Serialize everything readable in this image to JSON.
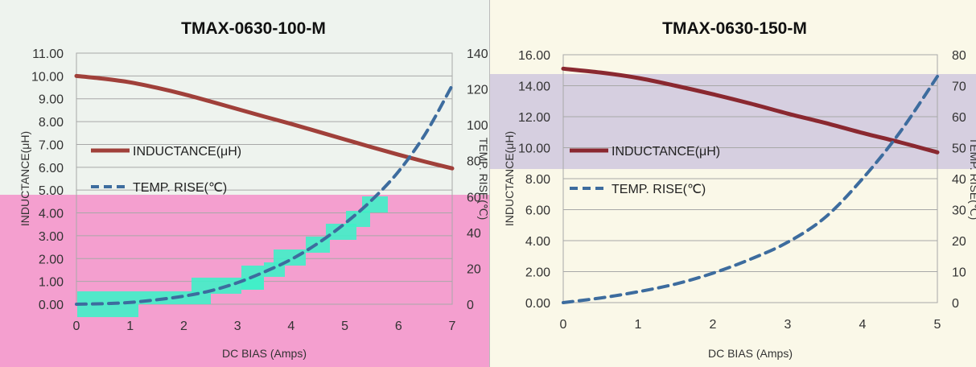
{
  "chart_data": [
    {
      "type": "line",
      "title": "TMAX-0630-100-M",
      "xlabel": "DC BIAS  (Amps)",
      "ylabel": "INDUCTANCE(μH)",
      "y2label": "TEMP. RISE(℃)",
      "xlim": [
        0,
        7
      ],
      "ylim": [
        0,
        11
      ],
      "y2lim": [
        0,
        140
      ],
      "x_ticks": [
        "0",
        "1",
        "2",
        "3",
        "4",
        "5",
        "6",
        "7"
      ],
      "y_ticks": [
        "0.00",
        "1.00",
        "2.00",
        "3.00",
        "4.00",
        "5.00",
        "6.00",
        "7.00",
        "8.00",
        "9.00",
        "10.00",
        "11.00"
      ],
      "y2_ticks": [
        "0",
        "20",
        "40",
        "60",
        "80",
        "100",
        "120",
        "140"
      ],
      "grid": "horizontal",
      "legend_position": "center-left",
      "series": [
        {
          "name": "INDUCTANCE(μH)",
          "axis": "left",
          "style": "solid",
          "color": "#a0403a",
          "x": [
            0,
            0.5,
            1,
            1.5,
            2,
            2.5,
            3,
            3.5,
            4,
            4.5,
            5,
            5.5,
            6,
            6.5,
            7
          ],
          "y": [
            10.0,
            9.88,
            9.72,
            9.48,
            9.2,
            8.88,
            8.55,
            8.22,
            7.9,
            7.56,
            7.22,
            6.88,
            6.55,
            6.24,
            5.95
          ]
        },
        {
          "name": "TEMP. RISE(℃)",
          "axis": "right",
          "style": "dashed",
          "color": "#3d6c9e",
          "x": [
            0,
            0.5,
            1,
            1.5,
            2,
            2.5,
            3,
            3.5,
            4,
            4.5,
            5,
            5.5,
            6,
            6.5,
            7
          ],
          "y": [
            0,
            0.3,
            1,
            2.5,
            4.5,
            7.5,
            12,
            18,
            25,
            34,
            45,
            58,
            74,
            95,
            122
          ]
        }
      ]
    },
    {
      "type": "line",
      "title": "TMAX-0630-150-M",
      "xlabel": "DC BIAS  (Amps)",
      "ylabel": "INDUCTANCE(μH)",
      "y2label": "TEMP. RISE(℃)",
      "xlim": [
        0,
        5
      ],
      "ylim": [
        0,
        16
      ],
      "y2lim": [
        0,
        80
      ],
      "x_ticks": [
        "0",
        "1",
        "2",
        "3",
        "4",
        "5"
      ],
      "y_ticks": [
        "0.00",
        "2.00",
        "4.00",
        "6.00",
        "8.00",
        "10.00",
        "12.00",
        "14.00",
        "16.00"
      ],
      "y2_ticks": [
        "0",
        "10",
        "20",
        "30",
        "40",
        "50",
        "60",
        "70",
        "80"
      ],
      "grid": "horizontal",
      "legend_position": "center-left",
      "series": [
        {
          "name": "INDUCTANCE(μH)",
          "axis": "left",
          "style": "solid",
          "color": "#8a2830",
          "x": [
            0,
            0.5,
            1,
            1.5,
            2,
            2.5,
            3,
            3.5,
            4,
            4.5,
            5
          ],
          "y": [
            15.1,
            14.85,
            14.5,
            14.0,
            13.45,
            12.85,
            12.2,
            11.6,
            10.95,
            10.35,
            9.7
          ]
        },
        {
          "name": "TEMP. RISE(℃)",
          "axis": "right",
          "style": "dashed",
          "color": "#3d6c9e",
          "x": [
            0,
            0.5,
            1,
            1.5,
            2,
            2.5,
            3,
            3.5,
            4,
            4.5,
            5
          ],
          "y": [
            0,
            1.5,
            3.5,
            6,
            9.5,
            14,
            19.5,
            27.5,
            40,
            55,
            73
          ]
        }
      ]
    }
  ],
  "colors": {
    "plot_bg_left": "#eef3ee",
    "highlight_pink": "#f49fcf",
    "highlight_teal": "#40f0c8",
    "plot_bg_right_purple": "#d6cfe0",
    "plot_bg_right_yellow": "#faf8e8"
  }
}
